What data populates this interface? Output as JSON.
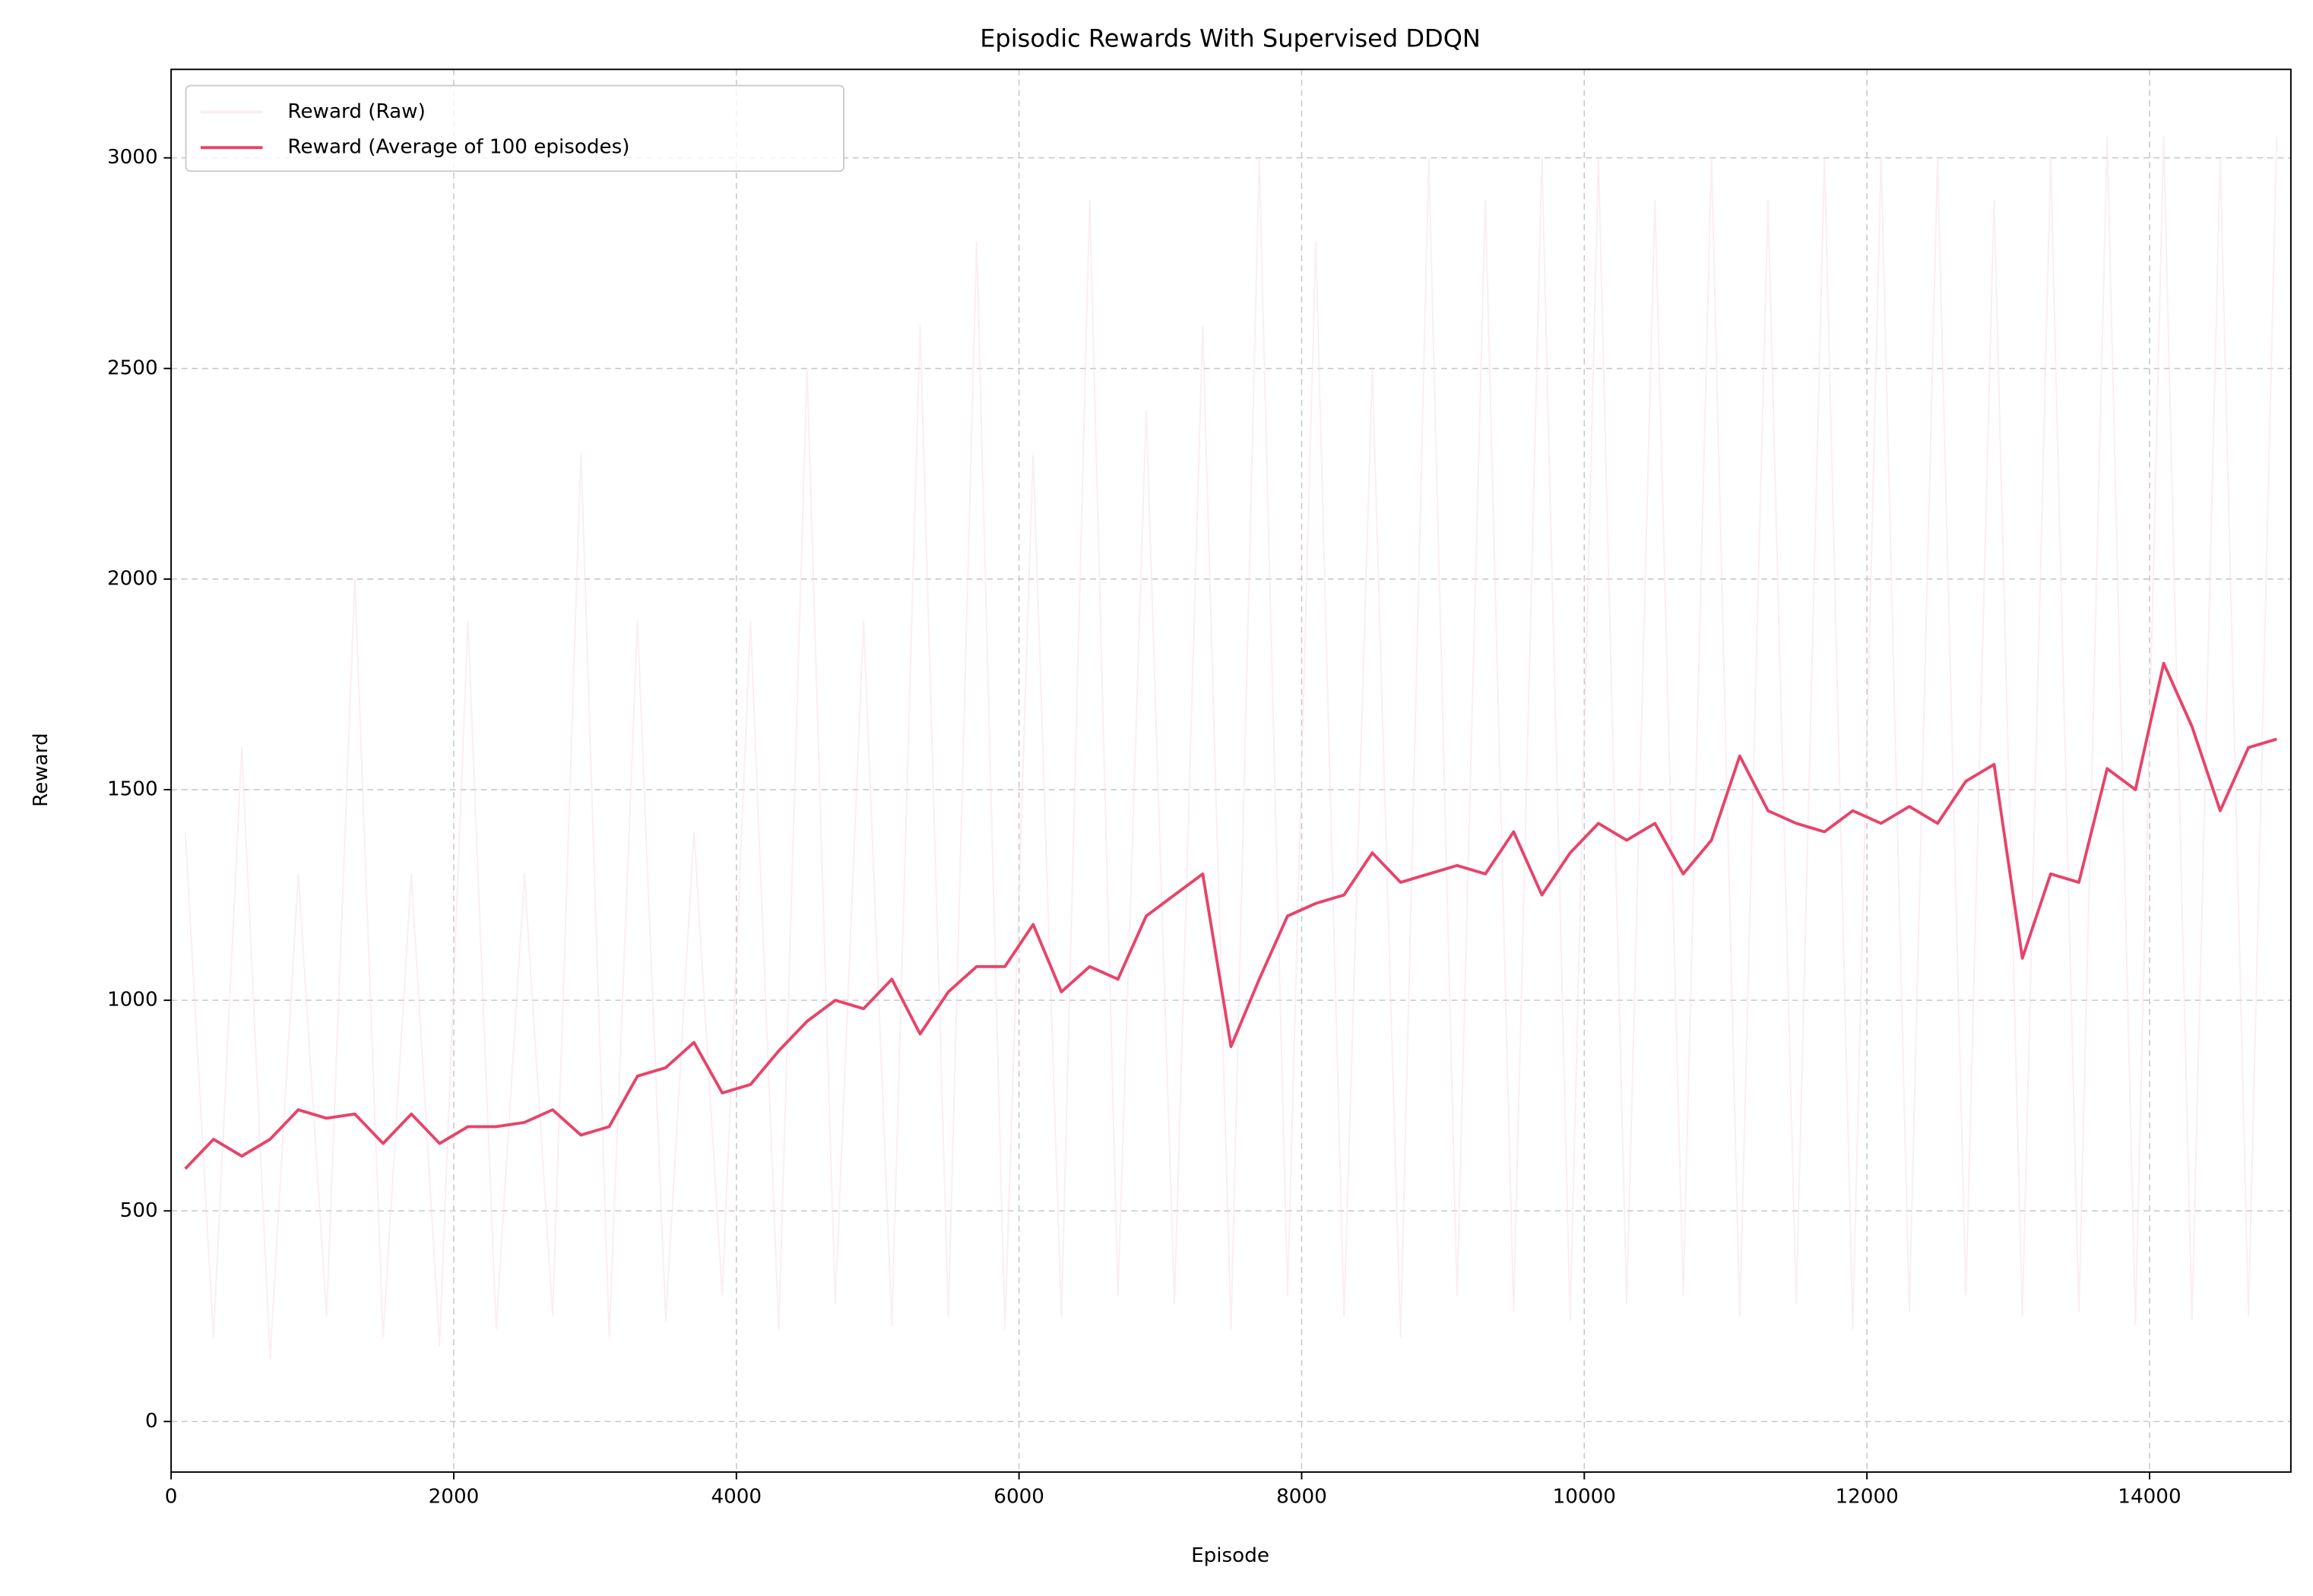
{
  "chart_data": {
    "type": "line",
    "title": "Episodic Rewards With Supervised DDQN",
    "xlabel": "Episode",
    "ylabel": "Reward",
    "x": [
      100,
      300,
      500,
      700,
      900,
      1100,
      1300,
      1500,
      1700,
      1900,
      2100,
      2300,
      2500,
      2700,
      2900,
      3100,
      3300,
      3500,
      3700,
      3900,
      4100,
      4300,
      4500,
      4700,
      4900,
      5100,
      5300,
      5500,
      5700,
      5900,
      6100,
      6300,
      6500,
      6700,
      6900,
      7100,
      7300,
      7500,
      7700,
      7900,
      8100,
      8300,
      8500,
      8700,
      8900,
      9100,
      9300,
      9500,
      9700,
      9900,
      10100,
      10300,
      10500,
      10700,
      10900,
      11100,
      11300,
      11500,
      11700,
      11900,
      12100,
      12300,
      12500,
      12700,
      12900,
      13100,
      13300,
      13500,
      13700,
      13900,
      14100,
      14300,
      14500,
      14700,
      14900
    ],
    "series": [
      {
        "name": "Reward (Raw)",
        "color": "#f3d9e3",
        "opacity": 0.45,
        "values": [
          1400,
          200,
          1600,
          150,
          1300,
          250,
          2000,
          200,
          1300,
          180,
          1900,
          220,
          1300,
          250,
          2300,
          200,
          1900,
          240,
          1400,
          300,
          1900,
          220,
          2500,
          280,
          1900,
          230,
          2600,
          250,
          2800,
          220,
          2300,
          250,
          2900,
          300,
          2400,
          280,
          2600,
          220,
          3000,
          300,
          2800,
          250,
          2500,
          200,
          3000,
          300,
          2900,
          260,
          3000,
          240,
          3000,
          280,
          2900,
          300,
          3000,
          250,
          2900,
          280,
          3000,
          220,
          3000,
          260,
          3000,
          300,
          2900,
          250,
          3000,
          260,
          3050,
          230,
          3050,
          240,
          3000,
          250,
          3050
        ]
      },
      {
        "name": "Reward (Average of 100 episodes)",
        "color": "#e8436a",
        "opacity": 1,
        "values": [
          600,
          670,
          630,
          670,
          740,
          720,
          730,
          660,
          730,
          660,
          700,
          700,
          710,
          740,
          680,
          700,
          820,
          840,
          900,
          780,
          800,
          880,
          950,
          1000,
          980,
          1050,
          920,
          1020,
          1080,
          1080,
          1180,
          1020,
          1080,
          1050,
          1200,
          1250,
          1300,
          890,
          1050,
          1200,
          1230,
          1250,
          1350,
          1280,
          1300,
          1320,
          1300,
          1400,
          1250,
          1350,
          1420,
          1380,
          1420,
          1300,
          1380,
          1580,
          1450,
          1420,
          1400,
          1450,
          1420,
          1460,
          1420,
          1520,
          1560,
          1100,
          1300,
          1280,
          1550,
          1500,
          1800,
          1650,
          1450,
          1600,
          1620
        ]
      }
    ],
    "xlim": [
      0,
      15000
    ],
    "xticks": [
      0,
      2000,
      4000,
      6000,
      8000,
      10000,
      12000,
      14000
    ],
    "ylim": [
      -120,
      3210
    ],
    "yticks": [
      0,
      500,
      1000,
      1500,
      2000,
      2500,
      3000
    ],
    "grid": true,
    "legend": "upper-left"
  }
}
